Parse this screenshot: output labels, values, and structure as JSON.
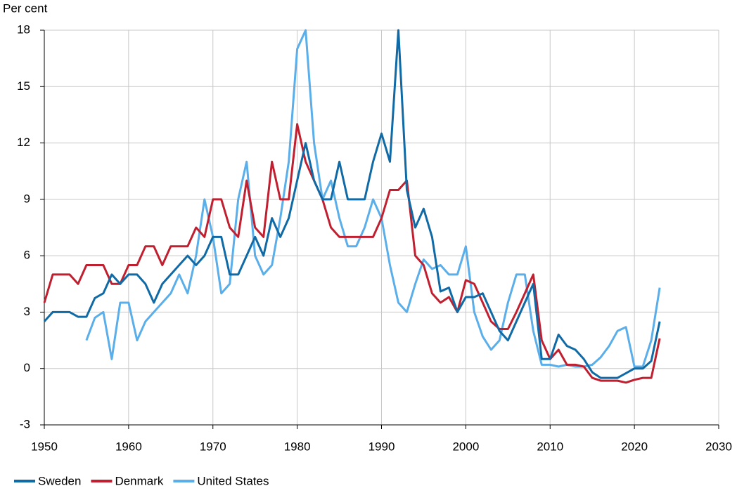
{
  "chart_data": {
    "type": "line",
    "y_label": "Per cent",
    "x": [
      1950,
      1951,
      1952,
      1953,
      1954,
      1955,
      1956,
      1957,
      1958,
      1959,
      1960,
      1961,
      1962,
      1963,
      1964,
      1965,
      1966,
      1967,
      1968,
      1969,
      1970,
      1971,
      1972,
      1973,
      1974,
      1975,
      1976,
      1977,
      1978,
      1979,
      1980,
      1981,
      1982,
      1983,
      1984,
      1985,
      1986,
      1987,
      1988,
      1989,
      1990,
      1991,
      1992,
      1993,
      1994,
      1995,
      1996,
      1997,
      1998,
      1999,
      2000,
      2001,
      2002,
      2003,
      2004,
      2005,
      2006,
      2007,
      2008,
      2009,
      2010,
      2011,
      2012,
      2013,
      2014,
      2015,
      2016,
      2017,
      2018,
      2019,
      2020,
      2021,
      2022,
      2023
    ],
    "series": [
      {
        "name": "Sweden",
        "color": "#0f6aa6",
        "values": [
          2.5,
          3,
          3,
          3,
          2.75,
          2.75,
          3.75,
          4,
          5,
          4.5,
          5,
          5,
          4.5,
          3.5,
          4.5,
          5,
          5.5,
          6,
          5.5,
          6,
          7,
          7,
          5,
          5,
          6,
          7,
          6,
          8,
          7,
          8,
          10,
          12,
          10,
          9,
          9,
          11,
          9,
          9,
          9,
          11,
          12.5,
          11,
          18,
          9.5,
          7.5,
          8.5,
          7,
          4.1,
          4.3,
          3,
          3.8,
          3.8,
          4,
          3,
          2,
          1.5,
          2.5,
          3.5,
          4.5,
          0.5,
          0.5,
          1.8,
          1.2,
          1,
          0.5,
          -0.2,
          -0.5,
          -0.5,
          -0.5,
          -0.25,
          0,
          0,
          0.4,
          2.5
        ]
      },
      {
        "name": "Denmark",
        "color": "#c01f2f",
        "values": [
          3.5,
          5,
          5,
          5,
          4.5,
          5.5,
          5.5,
          5.5,
          4.5,
          4.5,
          5.5,
          5.5,
          6.5,
          6.5,
          5.5,
          6.5,
          6.5,
          6.5,
          7.5,
          7,
          9,
          9,
          7.5,
          7,
          10,
          7.5,
          7,
          11,
          9,
          9,
          13,
          11,
          10,
          9,
          7.5,
          7,
          7,
          7,
          7,
          7,
          8,
          9.5,
          9.5,
          10,
          6,
          5.5,
          4,
          3.5,
          3.8,
          3,
          4.7,
          4.5,
          3.5,
          2.5,
          2.1,
          2.1,
          3,
          4,
          5,
          1.5,
          0.5,
          1,
          0.2,
          0.2,
          0.1,
          -0.5,
          -0.65,
          -0.65,
          -0.65,
          -0.75,
          -0.6,
          -0.5,
          -0.5,
          1.6
        ]
      },
      {
        "name": "United States",
        "color": "#5aaeea",
        "values": [
          null,
          null,
          null,
          null,
          null,
          1.5,
          2.7,
          3,
          0.5,
          3.5,
          3.5,
          1.5,
          2.5,
          3,
          3.5,
          4,
          5,
          4,
          6,
          9,
          7,
          4,
          4.5,
          9,
          11,
          6,
          5,
          5.5,
          8,
          11,
          17,
          18,
          12,
          9,
          10,
          8,
          6.5,
          6.5,
          7.5,
          9,
          8,
          5.5,
          3.5,
          3,
          4.5,
          5.8,
          5.3,
          5.5,
          5,
          5,
          6.5,
          3,
          1.7,
          1,
          1.5,
          3.5,
          5,
          5,
          2,
          0.2,
          0.2,
          0.1,
          0.2,
          0.1,
          0.1,
          0.2,
          0.6,
          1.2,
          2,
          2.2,
          0.1,
          0.1,
          1.5,
          4.3
        ]
      }
    ],
    "xlim": [
      1950,
      2030
    ],
    "xticks": [
      1950,
      1960,
      1970,
      1980,
      1990,
      2000,
      2010,
      2020,
      2030
    ],
    "ylim": [
      -3,
      18
    ],
    "yticks": [
      -3,
      0,
      3,
      6,
      9,
      12,
      15,
      18
    ],
    "grid": true,
    "legend": "bottom"
  }
}
